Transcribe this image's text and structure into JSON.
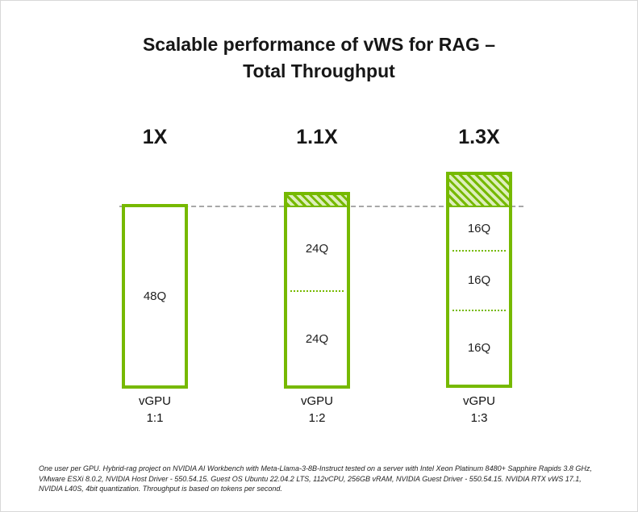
{
  "title": {
    "line1": "Scalable performance of vWS for RAG –",
    "line2": "Total Throughput"
  },
  "chart_data": {
    "type": "bar",
    "title": "Scalable performance of vWS for RAG – Total Throughput",
    "categories": [
      "vGPU 1:1",
      "vGPU 1:2",
      "vGPU 1:3"
    ],
    "series": [
      {
        "name": "vGPU 1:1",
        "multiplier_label": "1X",
        "relative_throughput": 1.0,
        "segments": [
          "48Q"
        ],
        "segment_count": 1,
        "hatched_above_baseline": false,
        "category_line1": "vGPU",
        "category_line2": "1:1"
      },
      {
        "name": "vGPU 1:2",
        "multiplier_label": "1.1X",
        "relative_throughput": 1.1,
        "segments": [
          "24Q",
          "24Q"
        ],
        "segment_count": 2,
        "hatched_above_baseline": true,
        "category_line1": "vGPU",
        "category_line2": "1:2"
      },
      {
        "name": "vGPU 1:3",
        "multiplier_label": "1.3X",
        "relative_throughput": 1.3,
        "segments": [
          "16Q",
          "16Q",
          "16Q"
        ],
        "segment_count": 3,
        "hatched_above_baseline": true,
        "category_line1": "vGPU",
        "category_line2": "1:3"
      }
    ],
    "baseline": {
      "label": "1X",
      "style": "dashed"
    },
    "grid": false,
    "legend_position": "none",
    "colors": {
      "bar_outline": "#76B900",
      "segment_divider": "#76B900",
      "hatch_stripe": "#76B900",
      "hatch_background": "#ddeebb",
      "baseline_line": "#a8a8a8",
      "text": "#161616"
    }
  },
  "footnote": "One user per GPU. Hybrid-rag project on NVIDIA AI Workbench with Meta-Llama-3-8B-Instruct tested on a server with Intel Xeon Platinum 8480+ Sapphire Rapids 3.8 GHz, VMware ESXi 8.0.2, NVIDIA Host Driver - 550.54.15. Guest OS Ubuntu 22.04.2 LTS, 112vCPU, 256GB vRAM, NVIDIA Guest Driver - 550.54.15. NVIDIA RTX vWS 17.1, NVIDIA L40S, 4bit quantization. Throughput is based on tokens per second."
}
